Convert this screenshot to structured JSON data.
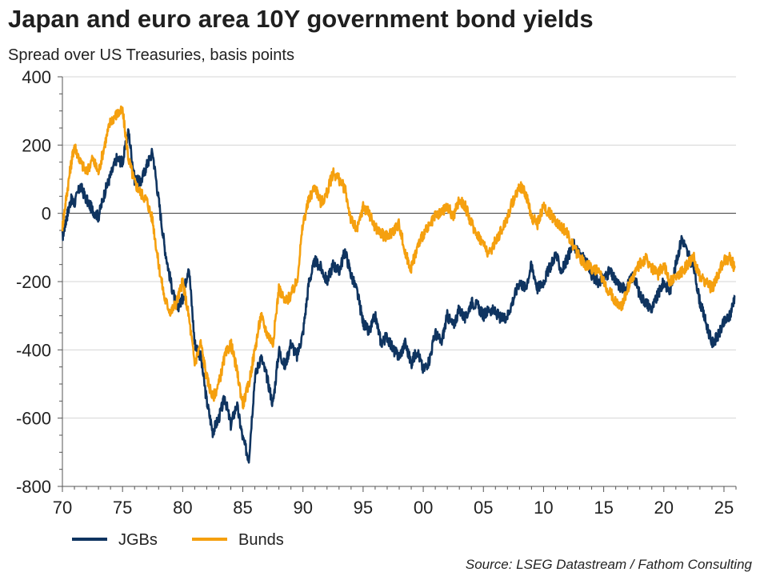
{
  "chart_data": {
    "type": "line",
    "title": "Japan and euro area 10Y government bond yields",
    "subtitle": "Spread over US Treasuries, basis points",
    "source": "Source: LSEG Datastream / Fathom Consulting",
    "xlabel": "",
    "ylabel": "",
    "xlim": [
      1970,
      2026
    ],
    "ylim": [
      -800,
      400
    ],
    "y_ticks": [
      400,
      200,
      0,
      -200,
      -400,
      -600,
      -800
    ],
    "x_ticks": [
      {
        "year": 1970,
        "label": "70"
      },
      {
        "year": 1975,
        "label": "75"
      },
      {
        "year": 1980,
        "label": "80"
      },
      {
        "year": 1985,
        "label": "85"
      },
      {
        "year": 1990,
        "label": "90"
      },
      {
        "year": 1995,
        "label": "95"
      },
      {
        "year": 2000,
        "label": "00"
      },
      {
        "year": 2005,
        "label": "05"
      },
      {
        "year": 2010,
        "label": "10"
      },
      {
        "year": 2015,
        "label": "15"
      },
      {
        "year": 2020,
        "label": "20"
      },
      {
        "year": 2025,
        "label": "25"
      }
    ],
    "grid": true,
    "legend_position": "bottom-left",
    "series": [
      {
        "name": "JGBs",
        "color": "#0f3460",
        "x": [
          1970.0,
          1970.3,
          1970.7,
          1971.0,
          1971.5,
          1972.0,
          1972.5,
          1973.0,
          1973.5,
          1974.0,
          1974.5,
          1975.0,
          1975.5,
          1976.0,
          1976.5,
          1977.0,
          1977.5,
          1978.0,
          1978.5,
          1979.0,
          1979.5,
          1980.0,
          1980.5,
          1981.0,
          1981.5,
          1982.0,
          1982.5,
          1983.0,
          1983.5,
          1984.0,
          1984.5,
          1985.0,
          1985.5,
          1986.0,
          1986.5,
          1987.0,
          1987.5,
          1988.0,
          1988.5,
          1989.0,
          1989.5,
          1990.0,
          1990.5,
          1991.0,
          1991.5,
          1992.0,
          1992.5,
          1993.0,
          1993.5,
          1994.0,
          1994.5,
          1995.0,
          1995.5,
          1996.0,
          1996.5,
          1997.0,
          1997.5,
          1998.0,
          1998.5,
          1999.0,
          1999.5,
          2000.0,
          2000.5,
          2001.0,
          2001.5,
          2002.0,
          2002.5,
          2003.0,
          2003.5,
          2004.0,
          2004.5,
          2005.0,
          2005.5,
          2006.0,
          2006.5,
          2007.0,
          2007.5,
          2008.0,
          2008.5,
          2009.0,
          2009.5,
          2010.0,
          2010.5,
          2011.0,
          2011.5,
          2012.0,
          2012.5,
          2013.0,
          2013.5,
          2014.0,
          2014.5,
          2015.0,
          2015.5,
          2016.0,
          2016.5,
          2017.0,
          2017.5,
          2018.0,
          2018.5,
          2019.0,
          2019.5,
          2020.0,
          2020.5,
          2021.0,
          2021.5,
          2022.0,
          2022.5,
          2023.0,
          2023.5,
          2024.0,
          2024.5,
          2025.0,
          2025.5,
          2025.9
        ],
        "values": [
          -70,
          -20,
          40,
          30,
          80,
          40,
          10,
          -10,
          60,
          110,
          160,
          150,
          240,
          100,
          90,
          140,
          180,
          40,
          -100,
          -200,
          -280,
          -250,
          -150,
          -380,
          -420,
          -550,
          -640,
          -600,
          -540,
          -620,
          -560,
          -660,
          -720,
          -480,
          -420,
          -480,
          -560,
          -400,
          -450,
          -380,
          -420,
          -350,
          -200,
          -140,
          -160,
          -200,
          -150,
          -170,
          -110,
          -180,
          -230,
          -320,
          -350,
          -300,
          -380,
          -360,
          -400,
          -420,
          -380,
          -440,
          -400,
          -460,
          -430,
          -350,
          -380,
          -300,
          -330,
          -280,
          -310,
          -260,
          -270,
          -300,
          -280,
          -290,
          -310,
          -300,
          -250,
          -200,
          -220,
          -150,
          -220,
          -200,
          -160,
          -120,
          -170,
          -130,
          -90,
          -120,
          -140,
          -180,
          -200,
          -190,
          -170,
          -200,
          -220,
          -210,
          -180,
          -240,
          -260,
          -280,
          -240,
          -200,
          -230,
          -150,
          -70,
          -120,
          -160,
          -260,
          -320,
          -380,
          -360,
          -320,
          -300,
          -240
        ]
      },
      {
        "name": "Bunds",
        "color": "#f5a00f",
        "x": [
          1970.0,
          1970.3,
          1970.7,
          1971.0,
          1971.5,
          1972.0,
          1972.5,
          1973.0,
          1973.5,
          1974.0,
          1974.5,
          1975.0,
          1975.5,
          1976.0,
          1976.5,
          1977.0,
          1977.5,
          1978.0,
          1978.5,
          1979.0,
          1979.5,
          1980.0,
          1980.5,
          1981.0,
          1981.5,
          1982.0,
          1982.5,
          1983.0,
          1983.5,
          1984.0,
          1984.5,
          1985.0,
          1985.5,
          1986.0,
          1986.5,
          1987.0,
          1987.5,
          1988.0,
          1988.5,
          1989.0,
          1989.5,
          1990.0,
          1990.5,
          1991.0,
          1991.5,
          1992.0,
          1992.5,
          1993.0,
          1993.5,
          1994.0,
          1994.5,
          1995.0,
          1995.5,
          1996.0,
          1996.5,
          1997.0,
          1997.5,
          1998.0,
          1998.5,
          1999.0,
          1999.5,
          2000.0,
          2000.5,
          2001.0,
          2001.5,
          2002.0,
          2002.5,
          2003.0,
          2003.5,
          2004.0,
          2004.5,
          2005.0,
          2005.5,
          2006.0,
          2006.5,
          2007.0,
          2007.5,
          2008.0,
          2008.5,
          2009.0,
          2009.5,
          2010.0,
          2010.5,
          2011.0,
          2011.5,
          2012.0,
          2012.5,
          2013.0,
          2013.5,
          2014.0,
          2014.5,
          2015.0,
          2015.5,
          2016.0,
          2016.5,
          2017.0,
          2017.5,
          2018.0,
          2018.5,
          2019.0,
          2019.5,
          2020.0,
          2020.5,
          2021.0,
          2021.5,
          2022.0,
          2022.5,
          2023.0,
          2023.5,
          2024.0,
          2024.5,
          2025.0,
          2025.5,
          2025.9
        ],
        "values": [
          -40,
          40,
          140,
          200,
          150,
          120,
          160,
          120,
          200,
          270,
          290,
          300,
          160,
          90,
          60,
          40,
          -20,
          -150,
          -250,
          -290,
          -260,
          -200,
          -300,
          -440,
          -380,
          -480,
          -540,
          -500,
          -420,
          -380,
          -460,
          -560,
          -500,
          -400,
          -300,
          -350,
          -380,
          -220,
          -260,
          -240,
          -200,
          -30,
          40,
          80,
          30,
          60,
          120,
          100,
          70,
          -20,
          -50,
          20,
          0,
          -40,
          -60,
          -70,
          -50,
          -30,
          -120,
          -160,
          -100,
          -60,
          -40,
          -10,
          0,
          20,
          -10,
          40,
          20,
          -30,
          -60,
          -90,
          -120,
          -80,
          -50,
          -10,
          40,
          80,
          60,
          -10,
          -30,
          20,
          0,
          -20,
          -40,
          -60,
          -100,
          -130,
          -150,
          -160,
          -170,
          -200,
          -230,
          -260,
          -270,
          -220,
          -180,
          -150,
          -130,
          -160,
          -180,
          -150,
          -200,
          -190,
          -170,
          -150,
          -130,
          -190,
          -200,
          -220,
          -180,
          -140,
          -130,
          -160
        ]
      }
    ]
  },
  "legend": [
    {
      "name": "JGBs",
      "color": "#0f3460"
    },
    {
      "name": "Bunds",
      "color": "#f5a00f"
    }
  ]
}
